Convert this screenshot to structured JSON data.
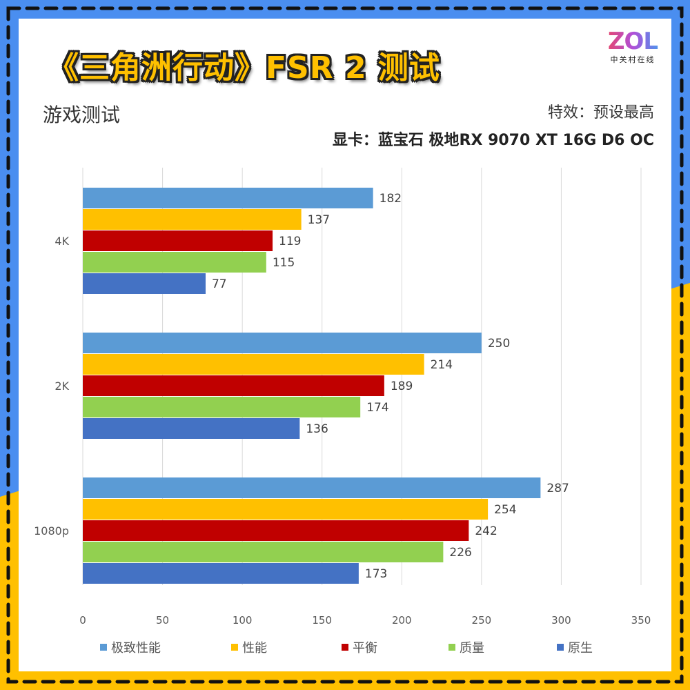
{
  "header": {
    "title": "《三角洲行动》FSR 2 测试",
    "subtitle": "游戏测试",
    "effects": "特效：预设最高",
    "gpu": "显卡：蓝宝石 极地RX 9070 XT 16G D6 OC"
  },
  "logo": {
    "text": "ZOL",
    "sub": "中关村在线"
  },
  "colors": {
    "frame_blue": "#4a8ef0",
    "frame_yellow": "#FFC000"
  },
  "chart_data": {
    "type": "bar",
    "orientation": "horizontal",
    "categories": [
      "4K",
      "2K",
      "1080p"
    ],
    "series": [
      {
        "name": "极致性能",
        "color": "#5B9BD5",
        "values": [
          182,
          250,
          287
        ]
      },
      {
        "name": "性能",
        "color": "#FFC000",
        "values": [
          137,
          214,
          254
        ]
      },
      {
        "name": "平衡",
        "color": "#C00000",
        "values": [
          119,
          189,
          242
        ]
      },
      {
        "name": "质量",
        "color": "#92D050",
        "values": [
          115,
          174,
          226
        ]
      },
      {
        "name": "原生",
        "color": "#4472C4",
        "values": [
          77,
          136,
          173
        ]
      }
    ],
    "xlim": [
      0,
      350
    ],
    "xticks": [
      0,
      50,
      100,
      150,
      200,
      250,
      300,
      350
    ],
    "grid": true,
    "legend": "bottom",
    "data_labels": true
  }
}
